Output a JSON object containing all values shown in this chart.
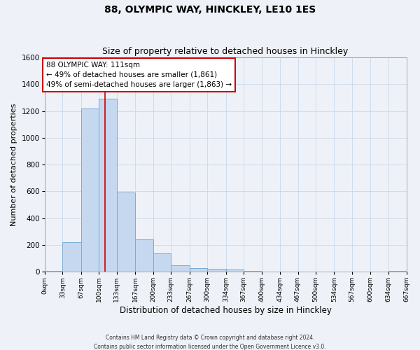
{
  "title": "88, OLYMPIC WAY, HINCKLEY, LE10 1ES",
  "subtitle": "Size of property relative to detached houses in Hinckley",
  "xlabel": "Distribution of detached houses by size in Hinckley",
  "ylabel": "Number of detached properties",
  "bin_edges": [
    0,
    33,
    67,
    100,
    133,
    167,
    200,
    233,
    267,
    300,
    334,
    367,
    400,
    434,
    467,
    500,
    534,
    567,
    600,
    634,
    667
  ],
  "bar_heights": [
    5,
    220,
    1220,
    1290,
    590,
    240,
    135,
    50,
    25,
    20,
    15,
    5,
    0,
    0,
    0,
    0,
    0,
    0,
    0,
    5
  ],
  "bar_color": "#c5d8f0",
  "bar_edgecolor": "#7aaad4",
  "reference_line_x": 111,
  "reference_line_color": "#cc0000",
  "annotation_title": "88 OLYMPIC WAY: 111sqm",
  "annotation_line1": "← 49% of detached houses are smaller (1,861)",
  "annotation_line2": "49% of semi-detached houses are larger (1,863) →",
  "annotation_box_edgecolor": "#cc0000",
  "annotation_box_facecolor": "#ffffff",
  "xlim": [
    0,
    667
  ],
  "ylim": [
    0,
    1600
  ],
  "yticks": [
    0,
    200,
    400,
    600,
    800,
    1000,
    1200,
    1400,
    1600
  ],
  "xtick_labels": [
    "0sqm",
    "33sqm",
    "67sqm",
    "100sqm",
    "133sqm",
    "167sqm",
    "200sqm",
    "233sqm",
    "267sqm",
    "300sqm",
    "334sqm",
    "367sqm",
    "400sqm",
    "434sqm",
    "467sqm",
    "500sqm",
    "534sqm",
    "567sqm",
    "600sqm",
    "634sqm",
    "667sqm"
  ],
  "footer1": "Contains HM Land Registry data © Crown copyright and database right 2024.",
  "footer2": "Contains public sector information licensed under the Open Government Licence v3.0.",
  "background_color": "#eef2f8",
  "plot_background": "#eef2f8",
  "title_fontsize": 10,
  "subtitle_fontsize": 9,
  "annotation_fontsize": 7.5
}
